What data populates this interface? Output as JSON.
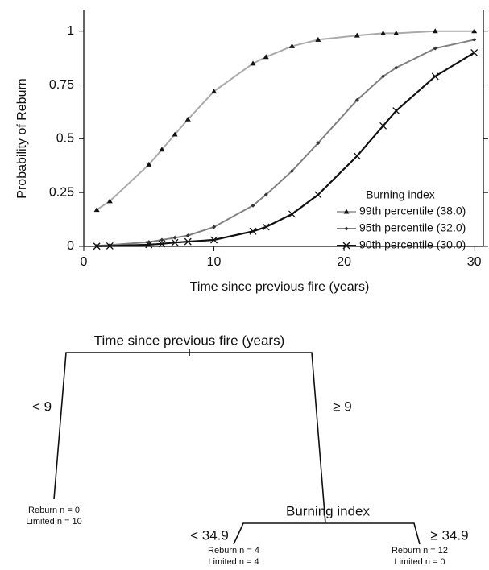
{
  "chart_data": {
    "type": "line",
    "xlabel": "Time since previous fire (years)",
    "ylabel": "Probability of Reburn",
    "x": [
      1,
      2,
      5,
      6,
      7,
      8,
      10,
      13,
      14,
      16,
      18,
      21,
      23,
      24,
      27,
      30
    ],
    "series": [
      {
        "name": "99th percentile (38.0)",
        "color": "#aaaaaa",
        "marker": "triangle",
        "values": [
          0.17,
          0.21,
          0.38,
          0.45,
          0.52,
          0.59,
          0.72,
          0.85,
          0.88,
          0.93,
          0.96,
          0.98,
          0.99,
          0.99,
          1.0,
          1.0
        ]
      },
      {
        "name": "95th percentile (32.0)",
        "color": "#808080",
        "marker": "diamond",
        "values": [
          0.003,
          0.006,
          0.02,
          0.03,
          0.04,
          0.05,
          0.09,
          0.19,
          0.24,
          0.35,
          0.48,
          0.68,
          0.79,
          0.83,
          0.92,
          0.96
        ]
      },
      {
        "name": "90th percentile (30.0)",
        "color": "#111111",
        "marker": "cross",
        "values": [
          0.001,
          0.002,
          0.008,
          0.012,
          0.018,
          0.022,
          0.03,
          0.07,
          0.09,
          0.15,
          0.24,
          0.42,
          0.56,
          0.63,
          0.79,
          0.9
        ]
      }
    ],
    "legend_title": "Burning index",
    "legend": "lower right",
    "xlim": [
      0,
      30.7
    ],
    "xticks": [
      0,
      10,
      20,
      30
    ],
    "ylim": [
      0,
      1.1
    ],
    "yticks": [
      0,
      0.25,
      0.5,
      0.75,
      1
    ]
  },
  "tree": {
    "root": {
      "label": "Time since previous fire (years)",
      "left": "< 9",
      "right": "≥ 9"
    },
    "leaf_left": [
      "Reburn n = 0",
      "Limited n = 10"
    ],
    "node": {
      "label": "Burning index",
      "left": "< 34.9",
      "right": "≥ 34.9"
    },
    "leaf_mid": [
      "Reburn n = 4",
      "Limited n = 4"
    ],
    "leaf_right": [
      "Reburn n = 12",
      "Limited n = 0"
    ]
  }
}
